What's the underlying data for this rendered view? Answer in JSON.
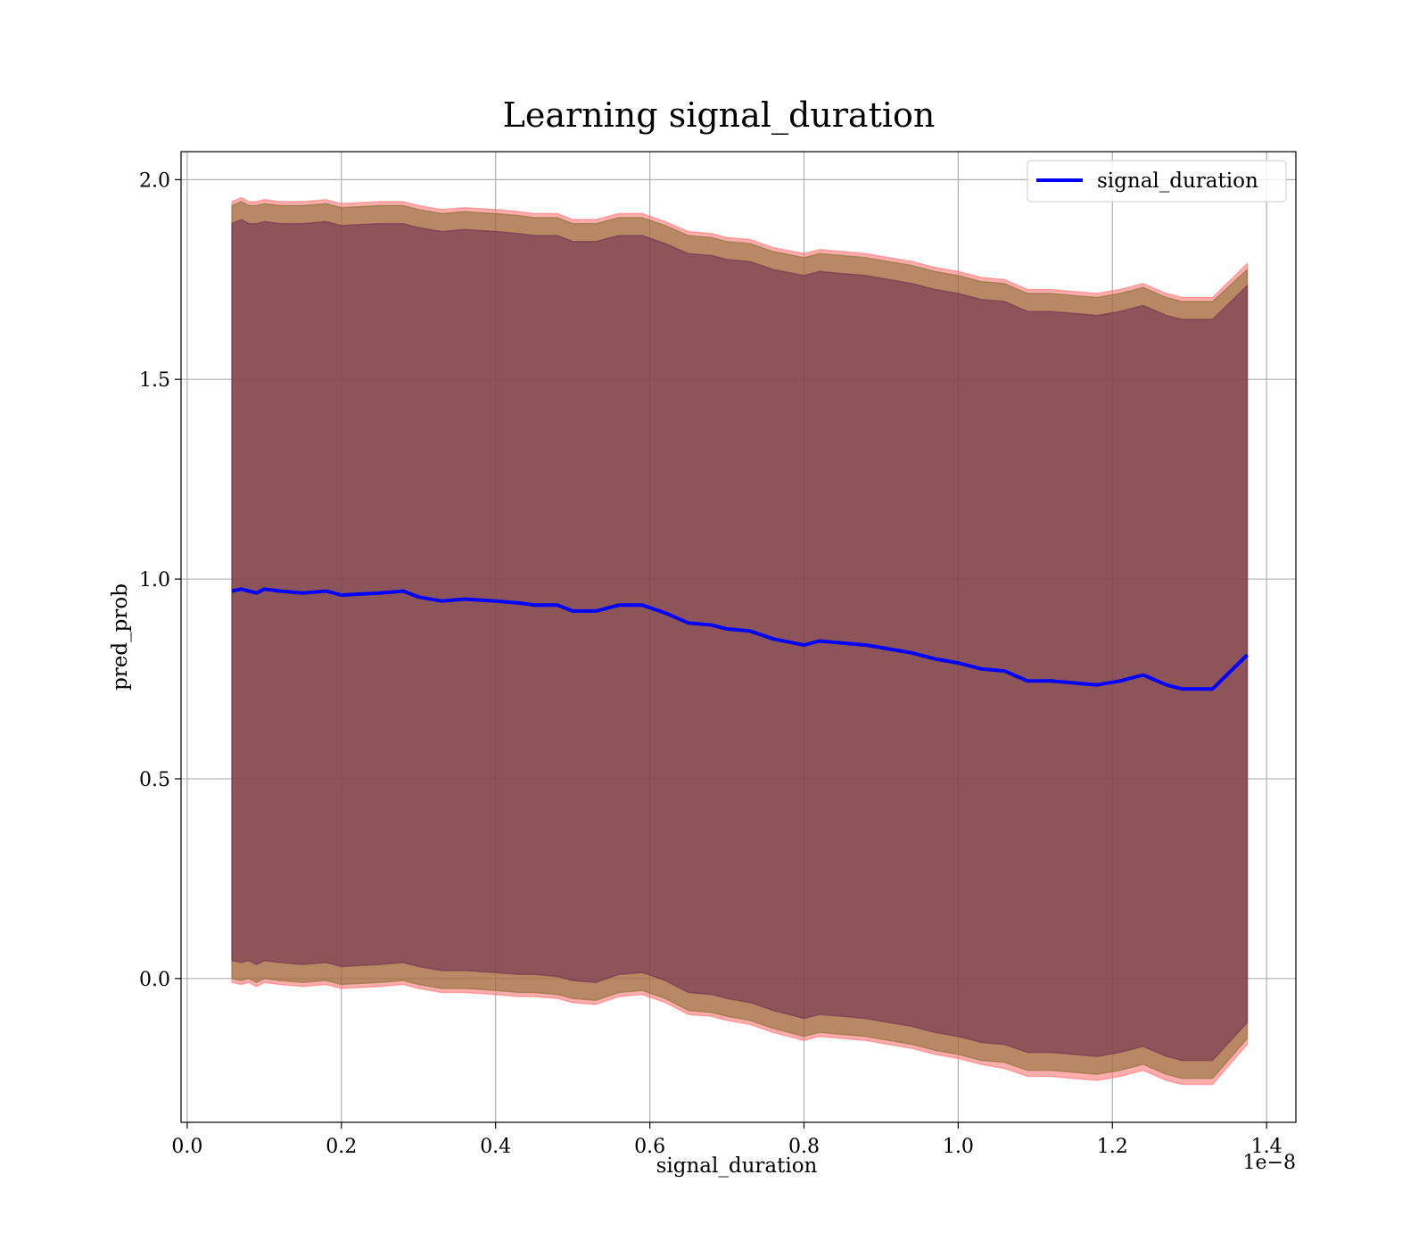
{
  "chart_data": {
    "type": "line",
    "title": "Learning signal_duration",
    "xlabel": "signal_duration",
    "ylabel": "pred_prob",
    "x_offset_label": "1e−8",
    "xlim": [
      -0.008,
      1.438
    ],
    "ylim": [
      -0.36,
      2.07
    ],
    "x_ticks": [
      0.0,
      0.2,
      0.4,
      0.6,
      0.8,
      1.0,
      1.2,
      1.4
    ],
    "x_tick_labels": [
      "0.0",
      "0.2",
      "0.4",
      "0.6",
      "0.8",
      "1.0",
      "1.2",
      "1.4"
    ],
    "y_ticks": [
      0.0,
      0.5,
      1.0,
      1.5,
      2.0
    ],
    "y_tick_labels": [
      "0.0",
      "0.5",
      "1.0",
      "1.5",
      "2.0"
    ],
    "grid": true,
    "legend_position": "top-right",
    "series": [
      {
        "name": "signal_duration",
        "color": "#0000ff",
        "x": [
          0.058,
          0.07,
          0.08,
          0.09,
          0.1,
          0.12,
          0.15,
          0.18,
          0.2,
          0.25,
          0.28,
          0.3,
          0.33,
          0.36,
          0.4,
          0.43,
          0.45,
          0.48,
          0.5,
          0.53,
          0.56,
          0.59,
          0.62,
          0.65,
          0.68,
          0.7,
          0.73,
          0.76,
          0.8,
          0.82,
          0.85,
          0.88,
          0.91,
          0.94,
          0.97,
          1.0,
          1.03,
          1.06,
          1.09,
          1.12,
          1.15,
          1.18,
          1.21,
          1.24,
          1.27,
          1.29,
          1.33,
          1.375
        ],
        "values": [
          0.97,
          0.975,
          0.97,
          0.965,
          0.975,
          0.97,
          0.965,
          0.97,
          0.96,
          0.965,
          0.97,
          0.955,
          0.945,
          0.95,
          0.945,
          0.94,
          0.935,
          0.935,
          0.92,
          0.92,
          0.935,
          0.935,
          0.915,
          0.89,
          0.885,
          0.875,
          0.87,
          0.85,
          0.835,
          0.845,
          0.84,
          0.835,
          0.825,
          0.815,
          0.8,
          0.79,
          0.775,
          0.77,
          0.745,
          0.745,
          0.74,
          0.735,
          0.745,
          0.76,
          0.735,
          0.725,
          0.725,
          0.81
        ]
      }
    ],
    "bands": [
      {
        "color": "#ff6a6a",
        "lower": [
          -0.01,
          -0.015,
          -0.01,
          -0.02,
          -0.01,
          -0.015,
          -0.02,
          -0.015,
          -0.025,
          -0.02,
          -0.015,
          -0.025,
          -0.035,
          -0.035,
          -0.04,
          -0.045,
          -0.045,
          -0.05,
          -0.06,
          -0.065,
          -0.045,
          -0.04,
          -0.06,
          -0.09,
          -0.095,
          -0.105,
          -0.115,
          -0.135,
          -0.155,
          -0.145,
          -0.15,
          -0.155,
          -0.165,
          -0.175,
          -0.19,
          -0.2,
          -0.215,
          -0.225,
          -0.245,
          -0.245,
          -0.25,
          -0.255,
          -0.245,
          -0.23,
          -0.255,
          -0.265,
          -0.265,
          -0.165
        ],
        "upper": [
          1.945,
          1.955,
          1.945,
          1.945,
          1.95,
          1.945,
          1.945,
          1.95,
          1.94,
          1.945,
          1.945,
          1.935,
          1.925,
          1.93,
          1.925,
          1.92,
          1.915,
          1.915,
          1.9,
          1.9,
          1.915,
          1.915,
          1.895,
          1.87,
          1.865,
          1.855,
          1.85,
          1.83,
          1.815,
          1.825,
          1.82,
          1.815,
          1.805,
          1.795,
          1.78,
          1.77,
          1.755,
          1.75,
          1.725,
          1.725,
          1.72,
          1.715,
          1.725,
          1.74,
          1.715,
          1.705,
          1.705,
          1.79
        ]
      },
      {
        "color": "#7f6a2a",
        "lower": [
          0.0,
          -0.005,
          0.0,
          -0.01,
          0.0,
          -0.005,
          -0.01,
          -0.005,
          -0.015,
          -0.01,
          -0.005,
          -0.015,
          -0.025,
          -0.025,
          -0.03,
          -0.035,
          -0.035,
          -0.04,
          -0.05,
          -0.055,
          -0.035,
          -0.03,
          -0.05,
          -0.08,
          -0.085,
          -0.095,
          -0.105,
          -0.125,
          -0.145,
          -0.135,
          -0.14,
          -0.145,
          -0.155,
          -0.165,
          -0.18,
          -0.19,
          -0.205,
          -0.21,
          -0.23,
          -0.23,
          -0.235,
          -0.24,
          -0.23,
          -0.215,
          -0.24,
          -0.25,
          -0.25,
          -0.15
        ],
        "upper": [
          1.935,
          1.945,
          1.935,
          1.935,
          1.94,
          1.935,
          1.935,
          1.94,
          1.93,
          1.935,
          1.935,
          1.925,
          1.915,
          1.92,
          1.915,
          1.91,
          1.905,
          1.905,
          1.89,
          1.89,
          1.905,
          1.905,
          1.885,
          1.86,
          1.855,
          1.845,
          1.84,
          1.82,
          1.805,
          1.815,
          1.81,
          1.805,
          1.795,
          1.785,
          1.77,
          1.76,
          1.745,
          1.74,
          1.715,
          1.715,
          1.71,
          1.705,
          1.715,
          1.73,
          1.705,
          1.695,
          1.695,
          1.775
        ]
      },
      {
        "color": "#6a2a50",
        "lower": [
          0.045,
          0.04,
          0.045,
          0.035,
          0.045,
          0.04,
          0.035,
          0.04,
          0.03,
          0.035,
          0.04,
          0.03,
          0.02,
          0.02,
          0.015,
          0.01,
          0.01,
          0.005,
          -0.005,
          -0.01,
          0.01,
          0.015,
          -0.005,
          -0.035,
          -0.04,
          -0.05,
          -0.06,
          -0.08,
          -0.1,
          -0.09,
          -0.095,
          -0.1,
          -0.11,
          -0.12,
          -0.135,
          -0.145,
          -0.16,
          -0.165,
          -0.185,
          -0.185,
          -0.19,
          -0.195,
          -0.185,
          -0.17,
          -0.195,
          -0.205,
          -0.205,
          -0.11
        ],
        "upper": [
          1.89,
          1.9,
          1.89,
          1.89,
          1.895,
          1.89,
          1.89,
          1.895,
          1.885,
          1.89,
          1.89,
          1.88,
          1.87,
          1.875,
          1.87,
          1.865,
          1.86,
          1.86,
          1.845,
          1.845,
          1.86,
          1.86,
          1.84,
          1.815,
          1.81,
          1.8,
          1.795,
          1.775,
          1.76,
          1.77,
          1.765,
          1.76,
          1.75,
          1.74,
          1.725,
          1.715,
          1.7,
          1.695,
          1.67,
          1.67,
          1.665,
          1.66,
          1.67,
          1.685,
          1.66,
          1.65,
          1.65,
          1.735
        ]
      }
    ]
  }
}
